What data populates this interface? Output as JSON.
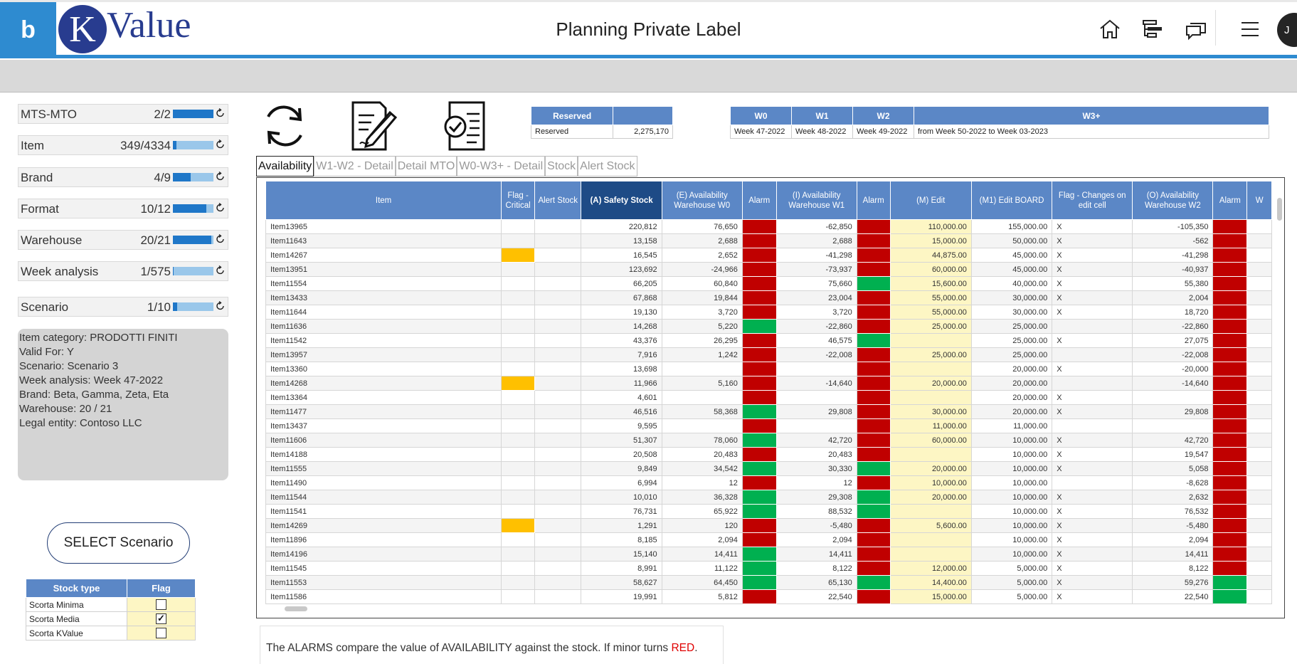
{
  "app": {
    "title": "Planning Private Label",
    "logo_letter": "K",
    "logo_text": "Value",
    "brand_glyph": "b",
    "user_initial": "J"
  },
  "colors": {
    "accent": "#2e8bd0",
    "header_blue": "#5b87c6",
    "alarm_red": "#c00000",
    "alarm_green": "#00b050",
    "flag_orange": "#ffc000",
    "edit_yellow": "#fdf6c4"
  },
  "toolbar_icons": [
    "home-icon",
    "tree-view-icon",
    "chat-icon",
    "menu-icon"
  ],
  "slicers": [
    {
      "label": "MTS-MTO",
      "count": "2/2",
      "fill": 1.0
    },
    {
      "label": "Item",
      "count": "349/4334",
      "fill": 0.08
    },
    {
      "label": "Brand",
      "count": "4/9",
      "fill": 0.44
    },
    {
      "label": "Format",
      "count": "10/12",
      "fill": 0.83
    },
    {
      "label": "Warehouse",
      "count": "20/21",
      "fill": 0.95
    },
    {
      "label": "Week analysis",
      "count": "1/575",
      "fill": 0.02
    },
    {
      "label": "Scenario",
      "count": "1/10",
      "fill": 0.1
    }
  ],
  "info": [
    "Item category: PRODOTTI FINITI",
    "Valid For: Y",
    "Scenario: Scenario 3",
    "Week analysis: Week 47-2022",
    "Brand: Beta, Gamma, Zeta, Eta",
    "Warehouse: 20 / 21",
    "Legal entity: Contoso LLC"
  ],
  "select_button": "SELECT Scenario",
  "stock_table": {
    "headers": [
      "Stock type",
      "Flag"
    ],
    "rows": [
      {
        "type": "Scorta Minima",
        "checked": false
      },
      {
        "type": "Scorta Media",
        "checked": true
      },
      {
        "type": "Scorta KValue",
        "checked": false
      }
    ]
  },
  "action_icons": [
    "refresh-icon",
    "edit-document-icon",
    "approve-document-icon"
  ],
  "reserved_table": {
    "headers": [
      "Reserved",
      ""
    ],
    "row": [
      "Reserved",
      "2,275,170"
    ]
  },
  "weeks_table": {
    "headers": [
      "W0",
      "W1",
      "W2",
      "W3+"
    ],
    "row": [
      "Week 47-2022",
      "Week 48-2022",
      "Week 49-2022",
      "from Week 50-2022 to Week 03-2023"
    ]
  },
  "tabs": [
    "Availability",
    "W1-W2 - Detail",
    "Detail MTO",
    "W0-W3+ - Detail",
    "Stock",
    "Alert Stock"
  ],
  "grid": {
    "headers": [
      "Item",
      "Flag - Critical",
      "Alert Stock",
      "(A) Safety Stock",
      "(E) Availability Warehouse W0",
      "Alarm",
      "(I) Availability Warehouse W1",
      "Alarm",
      "(M) Edit",
      "(M1) Edit BOARD",
      "Flag - Changes on edit cell",
      "(O) Availability Warehouse W2",
      "Alarm",
      "W"
    ],
    "rows": [
      {
        "item": "Item13965",
        "crit": false,
        "ss": "220,812",
        "e": "76,650",
        "a1": "red",
        "i": "-62,850",
        "a2": "red",
        "m": "110,000.00",
        "m1": "155,000.00",
        "x": "X",
        "o": "-105,350",
        "a3": "red"
      },
      {
        "item": "Item11643",
        "crit": false,
        "ss": "13,158",
        "e": "2,688",
        "a1": "red",
        "i": "2,688",
        "a2": "red",
        "m": "15,000.00",
        "m1": "50,000.00",
        "x": "X",
        "o": "-562",
        "a3": "red"
      },
      {
        "item": "Item14267",
        "crit": true,
        "ss": "16,545",
        "e": "2,652",
        "a1": "red",
        "i": "-41,298",
        "a2": "red",
        "m": "44,875.00",
        "m1": "45,000.00",
        "x": "X",
        "o": "-41,298",
        "a3": "red"
      },
      {
        "item": "Item13951",
        "crit": false,
        "ss": "123,692",
        "e": "-24,966",
        "a1": "red",
        "i": "-73,937",
        "a2": "red",
        "m": "60,000.00",
        "m1": "45,000.00",
        "x": "X",
        "o": "-40,937",
        "a3": "red"
      },
      {
        "item": "Item11554",
        "crit": false,
        "ss": "66,205",
        "e": "60,840",
        "a1": "red",
        "i": "75,660",
        "a2": "green",
        "m": "15,600.00",
        "m1": "40,000.00",
        "x": "X",
        "o": "55,380",
        "a3": "red"
      },
      {
        "item": "Item13433",
        "crit": false,
        "ss": "67,868",
        "e": "19,844",
        "a1": "red",
        "i": "23,004",
        "a2": "red",
        "m": "55,000.00",
        "m1": "30,000.00",
        "x": "X",
        "o": "2,004",
        "a3": "red"
      },
      {
        "item": "Item11644",
        "crit": false,
        "ss": "19,130",
        "e": "3,720",
        "a1": "red",
        "i": "3,720",
        "a2": "red",
        "m": "55,000.00",
        "m1": "30,000.00",
        "x": "X",
        "o": "18,720",
        "a3": "red"
      },
      {
        "item": "Item11636",
        "crit": false,
        "ss": "14,268",
        "e": "5,220",
        "a1": "green",
        "i": "-22,860",
        "a2": "red",
        "m": "25,000.00",
        "m1": "25,000.00",
        "x": "",
        "o": "-22,860",
        "a3": "red"
      },
      {
        "item": "Item11542",
        "crit": false,
        "ss": "43,376",
        "e": "26,295",
        "a1": "red",
        "i": "46,575",
        "a2": "green",
        "m": "",
        "m1": "25,000.00",
        "x": "X",
        "o": "27,075",
        "a3": "red"
      },
      {
        "item": "Item13957",
        "crit": false,
        "ss": "7,916",
        "e": "1,242",
        "a1": "red",
        "i": "-22,008",
        "a2": "red",
        "m": "25,000.00",
        "m1": "25,000.00",
        "x": "",
        "o": "-22,008",
        "a3": "red"
      },
      {
        "item": "Item13360",
        "crit": false,
        "ss": "13,698",
        "e": "",
        "a1": "red",
        "i": "",
        "a2": "red",
        "m": "",
        "m1": "20,000.00",
        "x": "X",
        "o": "-20,000",
        "a3": "red"
      },
      {
        "item": "Item14268",
        "crit": true,
        "ss": "11,966",
        "e": "5,160",
        "a1": "red",
        "i": "-14,640",
        "a2": "red",
        "m": "20,000.00",
        "m1": "20,000.00",
        "x": "",
        "o": "-14,640",
        "a3": "red"
      },
      {
        "item": "Item13364",
        "crit": false,
        "ss": "4,601",
        "e": "",
        "a1": "red",
        "i": "",
        "a2": "red",
        "m": "",
        "m1": "20,000.00",
        "x": "X",
        "o": "",
        "a3": "red"
      },
      {
        "item": "Item11477",
        "crit": false,
        "ss": "46,516",
        "e": "58,368",
        "a1": "green",
        "i": "29,808",
        "a2": "red",
        "m": "30,000.00",
        "m1": "20,000.00",
        "x": "X",
        "o": "29,808",
        "a3": "red"
      },
      {
        "item": "Item13437",
        "crit": false,
        "ss": "9,595",
        "e": "",
        "a1": "red",
        "i": "",
        "a2": "red",
        "m": "11,000.00",
        "m1": "11,000.00",
        "x": "",
        "o": "",
        "a3": "red"
      },
      {
        "item": "Item11606",
        "crit": false,
        "ss": "51,307",
        "e": "78,060",
        "a1": "green",
        "i": "42,720",
        "a2": "red",
        "m": "60,000.00",
        "m1": "10,000.00",
        "x": "X",
        "o": "42,720",
        "a3": "red"
      },
      {
        "item": "Item14188",
        "crit": false,
        "ss": "20,508",
        "e": "20,483",
        "a1": "red",
        "i": "20,483",
        "a2": "red",
        "m": "",
        "m1": "10,000.00",
        "x": "X",
        "o": "19,547",
        "a3": "red"
      },
      {
        "item": "Item11555",
        "crit": false,
        "ss": "9,849",
        "e": "34,542",
        "a1": "green",
        "i": "30,330",
        "a2": "green",
        "m": "20,000.00",
        "m1": "10,000.00",
        "x": "X",
        "o": "5,058",
        "a3": "red"
      },
      {
        "item": "Item11490",
        "crit": false,
        "ss": "6,994",
        "e": "12",
        "a1": "red",
        "i": "12",
        "a2": "red",
        "m": "10,000.00",
        "m1": "10,000.00",
        "x": "",
        "o": "-8,628",
        "a3": "red"
      },
      {
        "item": "Item11544",
        "crit": false,
        "ss": "10,010",
        "e": "36,328",
        "a1": "green",
        "i": "29,308",
        "a2": "green",
        "m": "20,000.00",
        "m1": "10,000.00",
        "x": "X",
        "o": "2,632",
        "a3": "red"
      },
      {
        "item": "Item11541",
        "crit": false,
        "ss": "76,731",
        "e": "65,922",
        "a1": "green",
        "i": "88,532",
        "a2": "green",
        "m": "",
        "m1": "10,000.00",
        "x": "X",
        "o": "76,532",
        "a3": "red"
      },
      {
        "item": "Item14269",
        "crit": true,
        "ss": "1,291",
        "e": "120",
        "a1": "red",
        "i": "-5,480",
        "a2": "red",
        "m": "5,600.00",
        "m1": "10,000.00",
        "x": "X",
        "o": "-5,480",
        "a3": "red"
      },
      {
        "item": "Item11896",
        "crit": false,
        "ss": "8,185",
        "e": "2,094",
        "a1": "red",
        "i": "2,094",
        "a2": "red",
        "m": "",
        "m1": "10,000.00",
        "x": "X",
        "o": "2,094",
        "a3": "red"
      },
      {
        "item": "Item14196",
        "crit": false,
        "ss": "15,140",
        "e": "14,411",
        "a1": "green",
        "i": "14,411",
        "a2": "red",
        "m": "",
        "m1": "10,000.00",
        "x": "X",
        "o": "14,411",
        "a3": "red"
      },
      {
        "item": "Item11545",
        "crit": false,
        "ss": "8,991",
        "e": "11,122",
        "a1": "green",
        "i": "8,122",
        "a2": "red",
        "m": "12,000.00",
        "m1": "5,000.00",
        "x": "X",
        "o": "8,122",
        "a3": "red"
      },
      {
        "item": "Item11553",
        "crit": false,
        "ss": "58,627",
        "e": "64,450",
        "a1": "green",
        "i": "65,130",
        "a2": "green",
        "m": "14,400.00",
        "m1": "5,000.00",
        "x": "X",
        "o": "59,276",
        "a3": "green"
      },
      {
        "item": "Item11586",
        "crit": false,
        "ss": "19,991",
        "e": "5,812",
        "a1": "red",
        "i": "22,540",
        "a2": "red",
        "m": "15,000.00",
        "m1": "5,000.00",
        "x": "X",
        "o": "22,540",
        "a3": "green"
      }
    ]
  },
  "note": {
    "text": "The ALARMS compare the value of AVAILABILITY against the stock. If minor turns ",
    "highlight": "RED",
    "end": "."
  }
}
